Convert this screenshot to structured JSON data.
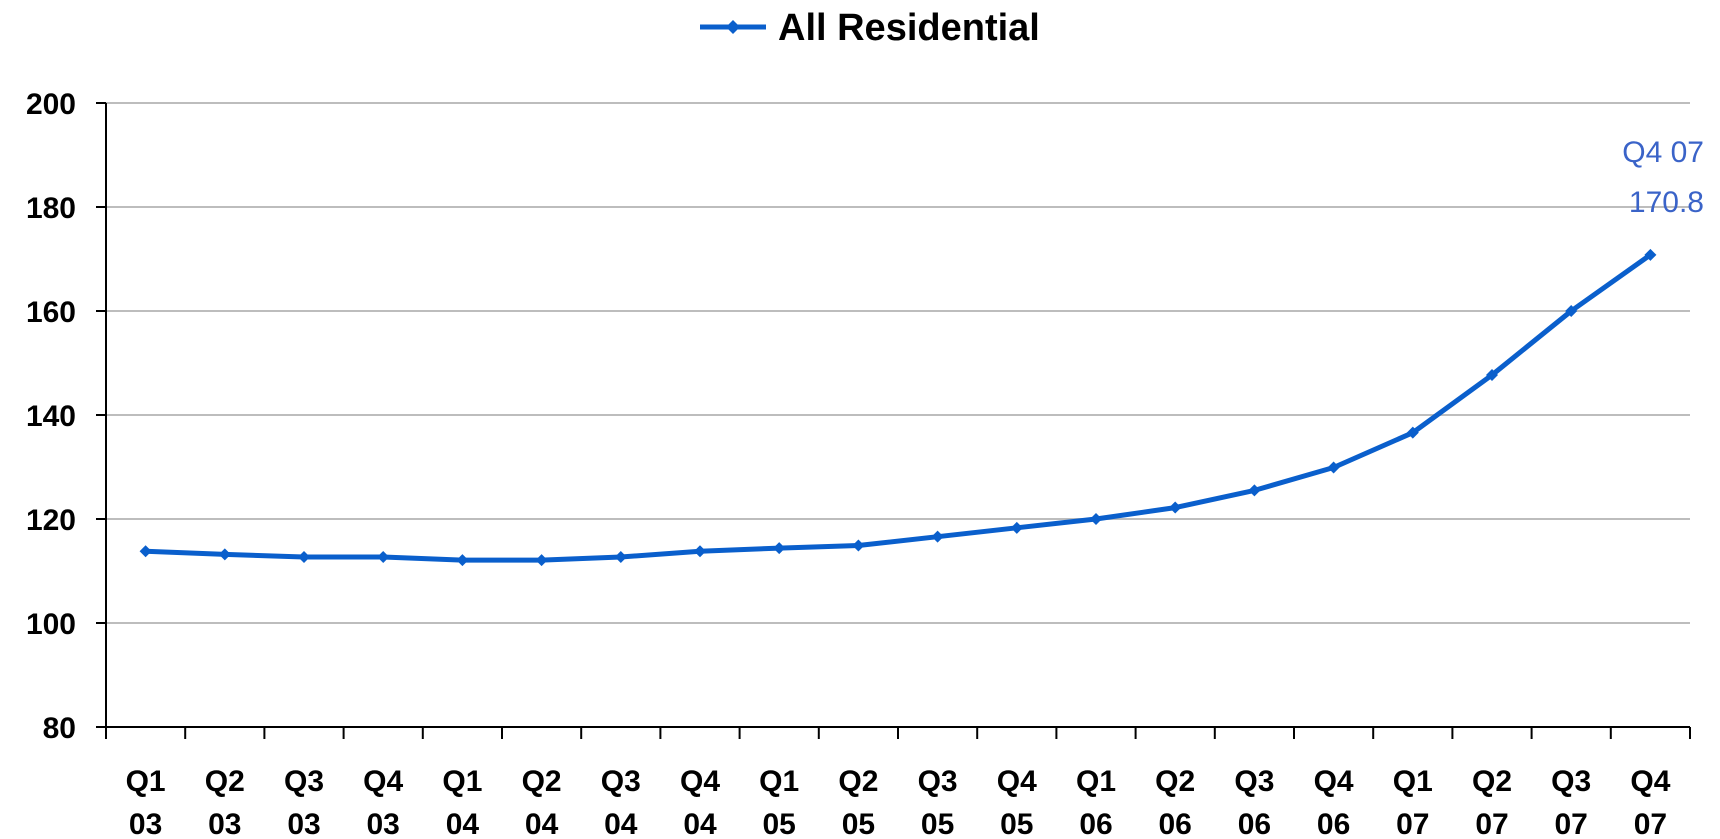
{
  "chart_data": {
    "type": "line",
    "categories": [
      "Q1 03",
      "Q2 03",
      "Q3 03",
      "Q4 03",
      "Q1 04",
      "Q2 04",
      "Q3 04",
      "Q4 04",
      "Q1 05",
      "Q2 05",
      "Q3 05",
      "Q4 05",
      "Q1 06",
      "Q2 06",
      "Q3 06",
      "Q4 06",
      "Q1 07",
      "Q2 07",
      "Q3 07",
      "Q4 07"
    ],
    "category_lines": [
      [
        "Q1",
        "03"
      ],
      [
        "Q2",
        "03"
      ],
      [
        "Q3",
        "03"
      ],
      [
        "Q4",
        "03"
      ],
      [
        "Q1",
        "04"
      ],
      [
        "Q2",
        "04"
      ],
      [
        "Q3",
        "04"
      ],
      [
        "Q4",
        "04"
      ],
      [
        "Q1",
        "05"
      ],
      [
        "Q2",
        "05"
      ],
      [
        "Q3",
        "05"
      ],
      [
        "Q4",
        "05"
      ],
      [
        "Q1",
        "06"
      ],
      [
        "Q2",
        "06"
      ],
      [
        "Q3",
        "06"
      ],
      [
        "Q4",
        "06"
      ],
      [
        "Q1",
        "07"
      ],
      [
        "Q2",
        "07"
      ],
      [
        "Q3",
        "07"
      ],
      [
        "Q4",
        "07"
      ]
    ],
    "series": [
      {
        "name": "All Residential",
        "color": "#0a5fcc",
        "marker": "diamond",
        "values": [
          113.8,
          113.2,
          112.7,
          112.7,
          112.1,
          112.1,
          112.7,
          113.8,
          114.4,
          114.9,
          116.6,
          118.3,
          120.0,
          122.2,
          125.5,
          129.9,
          136.6,
          147.7,
          160.0,
          170.8
        ]
      }
    ],
    "ylim": [
      80,
      200
    ],
    "yticks": [
      "80",
      "100",
      "120",
      "140",
      "160",
      "180",
      "200"
    ],
    "grid": true,
    "legend_position": "top-center",
    "annotation": {
      "line1": "Q4 07",
      "line2": "170.8",
      "color": "#3a63c8"
    }
  }
}
